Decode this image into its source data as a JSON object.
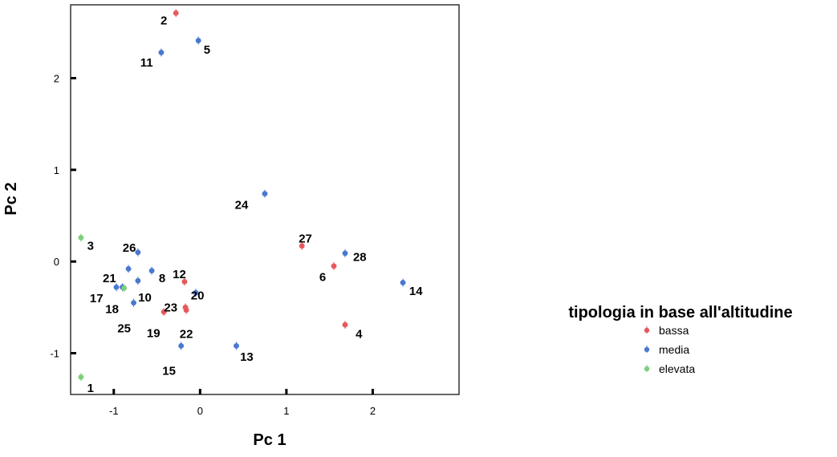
{
  "chart_data": {
    "type": "scatter",
    "xlabel": "Pc 1",
    "ylabel": "Pc 2",
    "xlim": [
      -1.5,
      3.0
    ],
    "ylim": [
      -1.45,
      2.8
    ],
    "x_ticks": [
      -1,
      0,
      1,
      2
    ],
    "y_ticks": [
      -1,
      0,
      1,
      2
    ],
    "grid": false,
    "legend": {
      "title": "tipologia in base all'altitudine",
      "placement": "right",
      "items": [
        {
          "label": "bassa",
          "color": "#e8585d"
        },
        {
          "label": "media",
          "color": "#4a78d0"
        },
        {
          "label": "elevata",
          "color": "#7ccf7c"
        }
      ]
    },
    "series": [
      {
        "name": "bassa",
        "color": "#e8585d",
        "points": [
          {
            "id": "2",
            "x": -0.28,
            "y": 2.71
          },
          {
            "id": "12",
            "x": -0.18,
            "y": -0.22
          },
          {
            "id": "23",
            "x": -0.17,
            "y": -0.5
          },
          {
            "id": "22",
            "x": -0.16,
            "y": -0.53
          },
          {
            "id": "19",
            "x": -0.42,
            "y": -0.55
          },
          {
            "id": "27",
            "x": 1.18,
            "y": 0.17
          },
          {
            "id": "6",
            "x": 1.55,
            "y": -0.05
          },
          {
            "id": "4",
            "x": 1.68,
            "y": -0.69
          }
        ]
      },
      {
        "name": "media",
        "color": "#4a78d0",
        "points": [
          {
            "id": "5",
            "x": -0.02,
            "y": 2.41
          },
          {
            "id": "11",
            "x": -0.45,
            "y": 2.28
          },
          {
            "id": "24",
            "x": 0.75,
            "y": 0.74
          },
          {
            "id": "26",
            "x": -0.72,
            "y": 0.1
          },
          {
            "id": "21",
            "x": -0.83,
            "y": -0.08
          },
          {
            "id": "8",
            "x": -0.56,
            "y": -0.1
          },
          {
            "id": "10",
            "x": -0.72,
            "y": -0.21
          },
          {
            "id": "17",
            "x": -0.97,
            "y": -0.28
          },
          {
            "id": "18",
            "x": -0.77,
            "y": -0.45
          },
          {
            "id": "20",
            "x": -0.05,
            "y": -0.34
          },
          {
            "id": "28",
            "x": 1.68,
            "y": 0.09
          },
          {
            "id": "14",
            "x": 2.35,
            "y": -0.23
          },
          {
            "id": "13",
            "x": 0.42,
            "y": -0.92
          },
          {
            "id": "15",
            "x": -0.22,
            "y": -0.92
          },
          {
            "id": "25",
            "x": -0.9,
            "y": -0.28
          }
        ]
      },
      {
        "name": "elevata",
        "color": "#7ccf7c",
        "points": [
          {
            "id": "3",
            "x": -1.38,
            "y": 0.26
          },
          {
            "id": "1",
            "x": -1.38,
            "y": -1.26
          },
          {
            "id": "25b",
            "x": -0.88,
            "y": -0.29
          }
        ]
      }
    ],
    "point_labels": [
      {
        "text": "2",
        "x": -0.42,
        "y": 2.63
      },
      {
        "text": "5",
        "x": 0.08,
        "y": 2.31
      },
      {
        "text": "11",
        "x": -0.62,
        "y": 2.17
      },
      {
        "text": "24",
        "x": 0.48,
        "y": 0.62
      },
      {
        "text": "3",
        "x": -1.27,
        "y": 0.17
      },
      {
        "text": "26",
        "x": -0.82,
        "y": 0.15
      },
      {
        "text": "27",
        "x": 1.22,
        "y": 0.25
      },
      {
        "text": "28",
        "x": 1.85,
        "y": 0.05
      },
      {
        "text": "21",
        "x": -1.05,
        "y": -0.18
      },
      {
        "text": "8",
        "x": -0.44,
        "y": -0.18
      },
      {
        "text": "12",
        "x": -0.24,
        "y": -0.14
      },
      {
        "text": "6",
        "x": 1.42,
        "y": -0.17
      },
      {
        "text": "17",
        "x": -1.2,
        "y": -0.4
      },
      {
        "text": "10",
        "x": -0.64,
        "y": -0.39
      },
      {
        "text": "20",
        "x": -0.03,
        "y": -0.37
      },
      {
        "text": "14",
        "x": 2.5,
        "y": -0.32
      },
      {
        "text": "23",
        "x": -0.34,
        "y": -0.5
      },
      {
        "text": "18",
        "x": -1.02,
        "y": -0.52
      },
      {
        "text": "25",
        "x": -0.88,
        "y": -0.73
      },
      {
        "text": "19",
        "x": -0.54,
        "y": -0.78
      },
      {
        "text": "22",
        "x": -0.16,
        "y": -0.79
      },
      {
        "text": "4",
        "x": 1.84,
        "y": -0.79
      },
      {
        "text": "13",
        "x": 0.54,
        "y": -1.04
      },
      {
        "text": "15",
        "x": -0.36,
        "y": -1.19
      },
      {
        "text": "1",
        "x": -1.27,
        "y": -1.38
      }
    ]
  }
}
